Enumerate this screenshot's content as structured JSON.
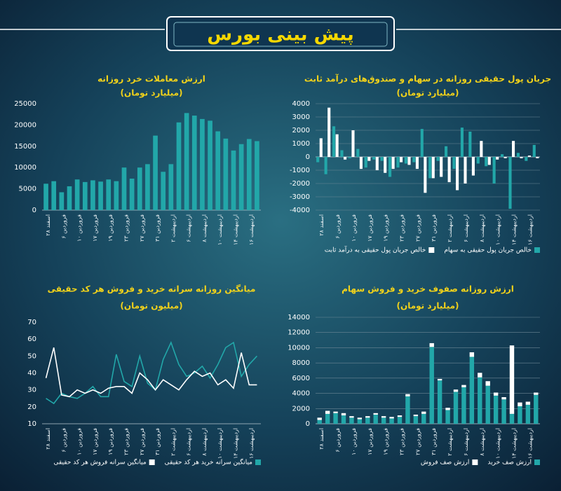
{
  "header": {
    "title": "پیش بینی بورس"
  },
  "chart_data": [
    {
      "type": "bar",
      "title": "ارزش معاملات خرد روزانه",
      "subtitle": "(میلیارد تومان)",
      "categories": [
        "اسفند ۲۸",
        null,
        "فروردین ۶",
        null,
        "فروردین ۱۰",
        null,
        "فروردین ۱۷",
        null,
        "فروردین ۱۹",
        null,
        "فروردین ۲۳",
        null,
        "فروردین ۲۷",
        null,
        "فروردین ۳۱",
        null,
        "اردیبهشت ۲",
        null,
        "اردیبهشت ۶",
        null,
        "اردیبهشت ۸",
        null,
        "اردیبهشت ۱۰",
        null,
        "اردیبهشت ۱۴",
        null,
        "اردیبهشت ۱۶",
        null
      ],
      "values": [
        6200,
        6800,
        4200,
        5600,
        7200,
        6600,
        7000,
        6700,
        7200,
        6800,
        10000,
        7400,
        10000,
        10800,
        17500,
        9000,
        10800,
        20600,
        22800,
        22200,
        21400,
        21000,
        18500,
        16800,
        14000,
        15500,
        16700,
        16200
      ],
      "color": "#22a7a9",
      "ylim": [
        0,
        25000
      ],
      "yticks": [
        0,
        5000,
        10000,
        15000,
        20000,
        25000
      ],
      "grid": false
    },
    {
      "type": "bar",
      "title": "جریان پول حقیقی روزانه در سهام و صندوق‌های درآمد ثابت",
      "subtitle": "(میلیارد تومان)",
      "categories": [
        "اسفند ۲۸",
        null,
        "فروردین ۶",
        null,
        "فروردین ۱۰",
        null,
        "فروردین ۱۷",
        null,
        "فروردین ۱۹",
        null,
        "فروردین ۲۳",
        null,
        "فروردین ۲۷",
        null,
        "فروردین ۳۱",
        null,
        "اردیبهشت ۲",
        null,
        "اردیبهشت ۶",
        null,
        "اردیبهشت ۸",
        null,
        "اردیبهشت ۱۰",
        null,
        "اردیبهشت ۱۴",
        null,
        "اردیبهشت ۱۶",
        null
      ],
      "series": [
        {
          "name": "خالص جریان پول حقیقی به سهام",
          "color": "#22a7a9",
          "values": [
            -400,
            -1300,
            2300,
            500,
            -100,
            600,
            -800,
            -200,
            -300,
            -1500,
            -800,
            -500,
            -400,
            2100,
            -1600,
            -300,
            800,
            -900,
            2200,
            1900,
            -500,
            -700,
            -2000,
            200,
            -3900,
            300,
            -300,
            900
          ]
        },
        {
          "name": "خالص جریان پول حقیقی به درآمد ثابت",
          "color": "#ffffff",
          "values": [
            1400,
            3700,
            1700,
            -200,
            2000,
            -900,
            -300,
            -1000,
            -1200,
            -900,
            -400,
            -600,
            -900,
            -2700,
            -1600,
            -1500,
            -1900,
            -2500,
            -2000,
            -1400,
            1200,
            -600,
            -200,
            -100,
            1200,
            -100,
            100,
            -100
          ]
        }
      ],
      "ylim": [
        -4000,
        4000
      ],
      "yticks": [
        -4000,
        -3000,
        -2000,
        -1000,
        0,
        1000,
        2000,
        3000,
        4000
      ],
      "grid": true,
      "legend": "bottom"
    },
    {
      "type": "line",
      "title": "میانگین روزانه سرانه خرید و فروش هر کد حقیقی",
      "subtitle": "(میلیون تومان)",
      "categories": [
        "اسفند ۲۸",
        null,
        "فروردین ۶",
        null,
        "فروردین ۱۰",
        null,
        "فروردین ۱۷",
        null,
        "فروردین ۱۹",
        null,
        "فروردین ۲۳",
        null,
        "فروردین ۲۷",
        null,
        "فروردین ۳۱",
        null,
        "اردیبهشت ۲",
        null,
        "اردیبهشت ۶",
        null,
        "اردیبهشت ۸",
        null,
        "اردیبهشت ۱۰",
        null,
        "اردیبهشت ۱۴",
        null,
        "اردیبهشت ۱۶",
        null
      ],
      "series": [
        {
          "name": "میانگین سرانه خرید هر کد حقیقی",
          "color": "#22a7a9",
          "values": [
            25,
            22,
            28,
            26,
            25,
            28,
            32,
            26,
            26,
            51,
            35,
            32,
            50,
            34,
            30,
            48,
            58,
            45,
            38,
            40,
            44,
            37,
            45,
            55,
            58,
            38,
            45,
            50
          ]
        },
        {
          "name": "میانگین سرانه فروش هر کد حقیقی",
          "color": "#ffffff",
          "values": [
            37,
            55,
            27,
            26,
            30,
            28,
            30,
            28,
            31,
            32,
            32,
            28,
            40,
            36,
            30,
            36,
            33,
            30,
            36,
            41,
            38,
            40,
            33,
            36,
            31,
            52,
            33,
            33
          ]
        }
      ],
      "ylim": [
        10,
        70
      ],
      "yticks": [
        10,
        20,
        30,
        40,
        50,
        60,
        70
      ],
      "grid": false,
      "legend": "bottom"
    },
    {
      "type": "bar",
      "stacked": true,
      "title": "ارزش روزانه صفوف خرید و فروش سهام",
      "subtitle": "(میلیارد تومان)",
      "categories": [
        "اسفند ۲۸",
        null,
        "فروردین ۶",
        null,
        "فروردین ۱۰",
        null,
        "فروردین ۱۷",
        null,
        "فروردین ۱۹",
        null,
        "فروردین ۲۳",
        null,
        "فروردین ۲۷",
        null,
        "فروردین ۳۱",
        null,
        "اردیبهشت ۲",
        null,
        "اردیبهشت ۶",
        null,
        "اردیبهشت ۸",
        null,
        "اردیبهشت ۱۰",
        null,
        "اردیبهشت ۱۴",
        null,
        "اردیبهشت ۱۶",
        null
      ],
      "series": [
        {
          "name": "ارزش صف خرید",
          "color": "#22a7a9",
          "values": [
            500,
            1300,
            1400,
            1100,
            800,
            600,
            800,
            1200,
            800,
            700,
            900,
            3600,
            1000,
            1300,
            10100,
            5700,
            1800,
            4200,
            4800,
            8800,
            6100,
            5000,
            3700,
            3200,
            1300,
            2300,
            2500,
            3800
          ]
        },
        {
          "name": "ارزش صف فروش",
          "color": "#ffffff",
          "values": [
            300,
            400,
            200,
            300,
            200,
            200,
            200,
            200,
            200,
            200,
            200,
            300,
            200,
            300,
            500,
            200,
            300,
            300,
            300,
            600,
            600,
            600,
            400,
            300,
            9000,
            500,
            400,
            300
          ]
        }
      ],
      "ylim": [
        0,
        14000
      ],
      "yticks": [
        0,
        2000,
        4000,
        6000,
        8000,
        10000,
        12000,
        14000
      ],
      "grid": true,
      "legend": "bottom"
    }
  ]
}
